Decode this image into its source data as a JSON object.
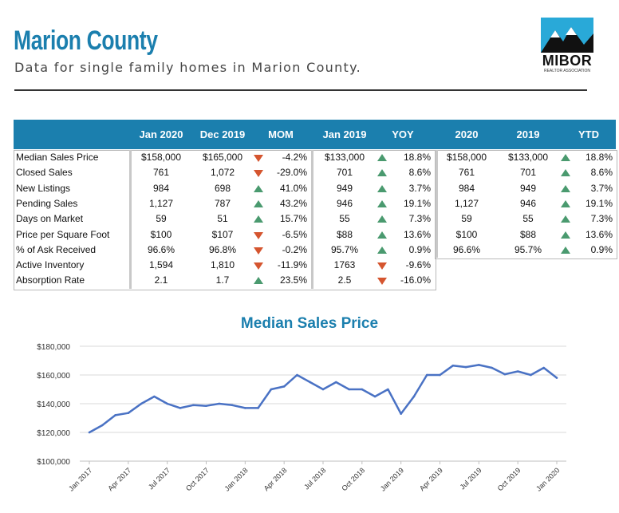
{
  "header": {
    "title": "Marion County",
    "subtitle": "Data for single family homes in Marion County.",
    "logo_text": "MIBOR",
    "logo_subtext": "REALTOR ASSOCIATION"
  },
  "table": {
    "columns": [
      "Jan 2020",
      "Dec 2019",
      "MOM",
      "Jan 2019",
      "YOY",
      "2020",
      "2019",
      "YTD"
    ],
    "rows": [
      {
        "label": "Median Sales Price",
        "jan2020": "$158,000",
        "dec2019": "$165,000",
        "mom": "-4.2%",
        "mom_dir": "down",
        "jan2019": "$133,000",
        "yoy": "18.8%",
        "yoy_dir": "up",
        "y2020": "$158,000",
        "y2019": "$133,000",
        "ytd": "18.8%",
        "ytd_dir": "up"
      },
      {
        "label": "Closed Sales",
        "jan2020": "761",
        "dec2019": "1,072",
        "mom": "-29.0%",
        "mom_dir": "down",
        "jan2019": "701",
        "yoy": "8.6%",
        "yoy_dir": "up",
        "y2020": "761",
        "y2019": "701",
        "ytd": "8.6%",
        "ytd_dir": "up"
      },
      {
        "label": "New Listings",
        "jan2020": "984",
        "dec2019": "698",
        "mom": "41.0%",
        "mom_dir": "up",
        "jan2019": "949",
        "yoy": "3.7%",
        "yoy_dir": "up",
        "y2020": "984",
        "y2019": "949",
        "ytd": "3.7%",
        "ytd_dir": "up"
      },
      {
        "label": "Pending Sales",
        "jan2020": "1,127",
        "dec2019": "787",
        "mom": "43.2%",
        "mom_dir": "up",
        "jan2019": "946",
        "yoy": "19.1%",
        "yoy_dir": "up",
        "y2020": "1,127",
        "y2019": "946",
        "ytd": "19.1%",
        "ytd_dir": "up"
      },
      {
        "label": "Days on Market",
        "jan2020": "59",
        "dec2019": "51",
        "mom": "15.7%",
        "mom_dir": "up",
        "jan2019": "55",
        "yoy": "7.3%",
        "yoy_dir": "up",
        "y2020": "59",
        "y2019": "55",
        "ytd": "7.3%",
        "ytd_dir": "up"
      },
      {
        "label": "Price per Square Foot",
        "jan2020": "$100",
        "dec2019": "$107",
        "mom": "-6.5%",
        "mom_dir": "down",
        "jan2019": "$88",
        "yoy": "13.6%",
        "yoy_dir": "up",
        "y2020": "$100",
        "y2019": "$88",
        "ytd": "13.6%",
        "ytd_dir": "up"
      },
      {
        "label": "% of Ask Received",
        "jan2020": "96.6%",
        "dec2019": "96.8%",
        "mom": "-0.2%",
        "mom_dir": "down",
        "jan2019": "95.7%",
        "yoy": "0.9%",
        "yoy_dir": "up",
        "y2020": "96.6%",
        "y2019": "95.7%",
        "ytd": "0.9%",
        "ytd_dir": "up"
      },
      {
        "label": "Active Inventory",
        "jan2020": "1,594",
        "dec2019": "1,810",
        "mom": "-11.9%",
        "mom_dir": "down",
        "jan2019": "1763",
        "yoy": "-9.6%",
        "yoy_dir": "down"
      },
      {
        "label": "Absorption Rate",
        "jan2020": "2.1",
        "dec2019": "1.7",
        "mom": "23.5%",
        "mom_dir": "up",
        "jan2019": "2.5",
        "yoy": "-16.0%",
        "yoy_dir": "down"
      }
    ],
    "colors": {
      "header_bg": "#1b7fae",
      "up": "#4a9a6f",
      "down": "#d5552f"
    }
  },
  "chart_data": {
    "type": "line",
    "title": "Median Sales Price",
    "xlabel": "",
    "ylabel": "",
    "ylim": [
      100000,
      180000
    ],
    "y_ticks": [
      100000,
      120000,
      140000,
      160000,
      180000
    ],
    "y_tick_labels": [
      "$100,000",
      "$120,000",
      "$140,000",
      "$160,000",
      "$180,000"
    ],
    "x": [
      "Jan 2017",
      "Feb 2017",
      "Mar 2017",
      "Apr 2017",
      "May 2017",
      "Jun 2017",
      "Jul 2017",
      "Aug 2017",
      "Sep 2017",
      "Oct 2017",
      "Nov 2017",
      "Dec 2017",
      "Jan 2018",
      "Feb 2018",
      "Mar 2018",
      "Apr 2018",
      "May 2018",
      "Jun 2018",
      "Jul 2018",
      "Aug 2018",
      "Sep 2018",
      "Oct 2018",
      "Nov 2018",
      "Dec 2018",
      "Jan 2019",
      "Feb 2019",
      "Mar 2019",
      "Apr 2019",
      "May 2019",
      "Jun 2019",
      "Jul 2019",
      "Aug 2019",
      "Sep 2019",
      "Oct 2019",
      "Nov 2019",
      "Dec 2019",
      "Jan 2020"
    ],
    "x_tick_labels": [
      "Jan 2017",
      "Apr 2017",
      "Jul 2017",
      "Oct 2017",
      "Jan 2018",
      "Apr 2018",
      "Jul 2018",
      "Oct 2018",
      "Jan 2019",
      "Apr 2019",
      "Jul 2019",
      "Oct 2019",
      "Jan 2020"
    ],
    "series": [
      {
        "values": [
          120000,
          125000,
          132000,
          133500,
          140000,
          145000,
          140000,
          137000,
          139000,
          138500,
          140000,
          139000,
          137000,
          137000,
          150000,
          152000,
          160000,
          155000,
          150000,
          155000,
          150000,
          150000,
          145000,
          150000,
          133000,
          145000,
          160000,
          160000,
          166500,
          165500,
          167000,
          165000,
          160500,
          162500,
          160000,
          165000,
          158000
        ]
      }
    ],
    "line_color": "#4a72c4",
    "grid": true
  }
}
